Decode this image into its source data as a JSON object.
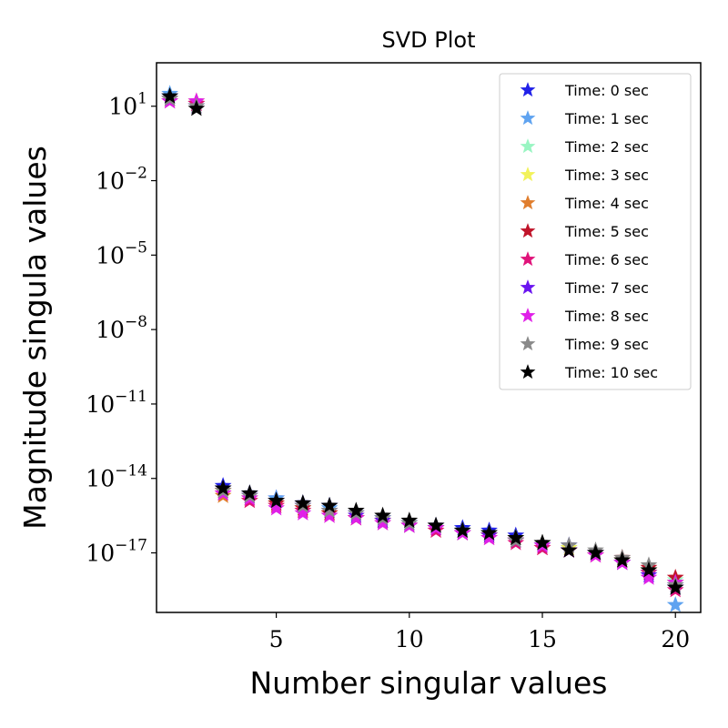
{
  "chart_data": {
    "type": "scatter",
    "title": "SVD Plot",
    "xlabel": "Number singular values",
    "ylabel": "Magnitude singula values",
    "xlim": [
      0.5,
      20.95
    ],
    "ylim_log10": [
      -19.4,
      2.75
    ],
    "yscale": "log",
    "x_ticks": [
      5,
      10,
      15,
      20
    ],
    "x_tick_labels": [
      "5",
      "10",
      "15",
      "20"
    ],
    "y_ticks": [
      {
        "base": "10",
        "exp": "1",
        "value": 1
      },
      {
        "base": "10",
        "exp": "−2",
        "value": -2
      },
      {
        "base": "10",
        "exp": "−5",
        "value": -5
      },
      {
        "base": "10",
        "exp": "−8",
        "value": -8
      },
      {
        "base": "10",
        "exp": "−11",
        "value": -11
      },
      {
        "base": "10",
        "exp": "−14",
        "value": -14
      },
      {
        "base": "10",
        "exp": "−17",
        "value": -17
      }
    ],
    "grid": false,
    "legend_position": "upper right",
    "marker": "star",
    "x": [
      1,
      2,
      3,
      4,
      5,
      6,
      7,
      8,
      9,
      10,
      11,
      12,
      13,
      14,
      15,
      16,
      17,
      18,
      19,
      20
    ],
    "series": [
      {
        "name": "Time: 0 sec",
        "color": "#2121e8",
        "log10_values": [
          1.4,
          1.1,
          -14.3,
          -14.6,
          -14.8,
          -15.0,
          -15.1,
          -15.4,
          -15.6,
          -15.8,
          -15.9,
          -16.0,
          -16.1,
          -16.3,
          -16.6,
          -16.7,
          -17.0,
          -17.3,
          -17.8,
          -18.3
        ]
      },
      {
        "name": "Time: 1 sec",
        "color": "#5fa3f0",
        "log10_values": [
          1.5,
          1.0,
          -14.4,
          -14.7,
          -14.8,
          -15.1,
          -15.2,
          -15.5,
          -15.6,
          -15.8,
          -16.0,
          -16.1,
          -16.2,
          -16.4,
          -16.7,
          -16.8,
          -17.0,
          -17.4,
          -17.9,
          -19.1
        ]
      },
      {
        "name": "Time: 2 sec",
        "color": "#99f5c2",
        "log10_values": [
          1.3,
          1.1,
          -14.5,
          -14.8,
          -15.0,
          -15.2,
          -15.3,
          -15.5,
          -15.7,
          -15.9,
          -16.0,
          -16.1,
          -16.3,
          -16.4,
          -16.7,
          -16.8,
          -17.0,
          -17.3,
          -17.7,
          -18.1
        ]
      },
      {
        "name": "Time: 3 sec",
        "color": "#f2f25a",
        "log10_values": [
          1.3,
          1.2,
          -14.5,
          -14.8,
          -15.0,
          -15.2,
          -15.4,
          -15.5,
          -15.7,
          -15.9,
          -16.0,
          -16.2,
          -16.3,
          -16.4,
          -16.6,
          -16.8,
          -17.0,
          -17.3,
          -17.7,
          -18.2
        ]
      },
      {
        "name": "Time: 4 sec",
        "color": "#e07e2e",
        "log10_values": [
          1.3,
          1.1,
          -14.7,
          -14.9,
          -15.1,
          -15.3,
          -15.4,
          -15.6,
          -15.7,
          -15.9,
          -16.1,
          -16.2,
          -16.3,
          -16.5,
          -16.8,
          -16.9,
          -17.1,
          -17.3,
          -17.7,
          -18.2
        ]
      },
      {
        "name": "Time: 5 sec",
        "color": "#c0142a",
        "log10_values": [
          1.3,
          1.1,
          -14.5,
          -14.8,
          -15.0,
          -15.2,
          -15.4,
          -15.6,
          -15.7,
          -15.9,
          -16.0,
          -16.2,
          -16.3,
          -16.5,
          -16.8,
          -16.9,
          -17.0,
          -17.2,
          -17.6,
          -18.0
        ]
      },
      {
        "name": "Time: 6 sec",
        "color": "#e0137a",
        "log10_values": [
          1.2,
          1.1,
          -14.6,
          -14.9,
          -15.1,
          -15.3,
          -15.5,
          -15.6,
          -15.8,
          -15.9,
          -16.1,
          -16.2,
          -16.4,
          -16.6,
          -16.8,
          -16.9,
          -17.1,
          -17.4,
          -17.8,
          -18.5
        ]
      },
      {
        "name": "Time: 7 sec",
        "color": "#6a14f0",
        "log10_values": [
          1.3,
          1.0,
          -14.4,
          -14.7,
          -14.9,
          -15.1,
          -15.3,
          -15.5,
          -15.7,
          -15.9,
          -16.0,
          -16.2,
          -16.3,
          -16.5,
          -16.7,
          -16.9,
          -17.0,
          -17.4,
          -17.9,
          -18.4
        ]
      },
      {
        "name": "Time: 8 sec",
        "color": "#e020e8",
        "log10_values": [
          1.2,
          1.2,
          -14.6,
          -14.8,
          -15.2,
          -15.4,
          -15.5,
          -15.6,
          -15.8,
          -15.9,
          -16.0,
          -16.2,
          -16.4,
          -16.5,
          -16.7,
          -16.9,
          -17.1,
          -17.4,
          -18.0,
          -18.2
        ]
      },
      {
        "name": "Time: 9 sec",
        "color": "#8a8a8a",
        "log10_values": [
          1.3,
          1.0,
          -14.5,
          -14.7,
          -14.9,
          -15.1,
          -15.3,
          -15.4,
          -15.6,
          -15.8,
          -15.9,
          -16.1,
          -16.2,
          -16.5,
          -16.6,
          -16.7,
          -16.9,
          -17.2,
          -17.5,
          -18.3
        ]
      },
      {
        "name": "Time: 10 sec",
        "color": "#000000",
        "log10_values": [
          1.4,
          0.9,
          -14.4,
          -14.6,
          -14.9,
          -15.0,
          -15.1,
          -15.3,
          -15.5,
          -15.7,
          -15.9,
          -16.1,
          -16.2,
          -16.4,
          -16.6,
          -16.9,
          -17.0,
          -17.3,
          -17.7,
          -18.4
        ]
      }
    ]
  }
}
